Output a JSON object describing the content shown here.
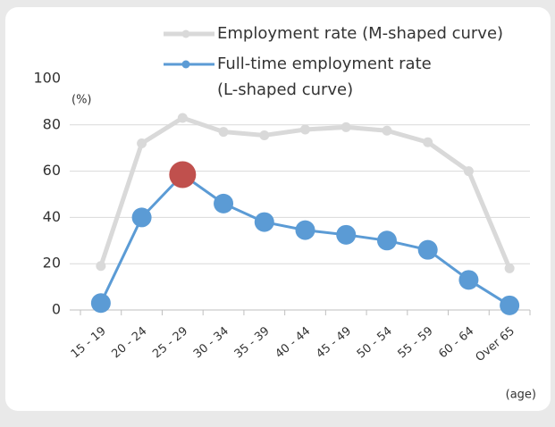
{
  "chart_data": {
    "type": "line",
    "categories": [
      "15 - 19",
      "20 - 24",
      "25 - 29",
      "30 - 34",
      "35 - 39",
      "40 - 44",
      "45 - 49",
      "50 - 54",
      "55 - 59",
      "60 - 64",
      "Over 65"
    ],
    "series": [
      {
        "name": "Employment rate (M-shaped curve)",
        "color": "#d9d9d9",
        "values": [
          19,
          72,
          83,
          77,
          75.5,
          78,
          79,
          77.5,
          72.5,
          60,
          18
        ]
      },
      {
        "name": "Full-time employment rate\n(L-shaped curve)",
        "color": "#5b9bd5",
        "values": [
          3,
          40,
          58.5,
          46,
          38,
          34.5,
          32.5,
          30,
          26,
          13,
          2
        ],
        "highlight_index": 2,
        "highlight_color": "#c0504d"
      }
    ],
    "y_label": "(%)",
    "x_label": "(age)",
    "ylim": [
      0,
      100
    ],
    "yticks": [
      0,
      20,
      40,
      60,
      80,
      100
    ],
    "grid": true
  }
}
